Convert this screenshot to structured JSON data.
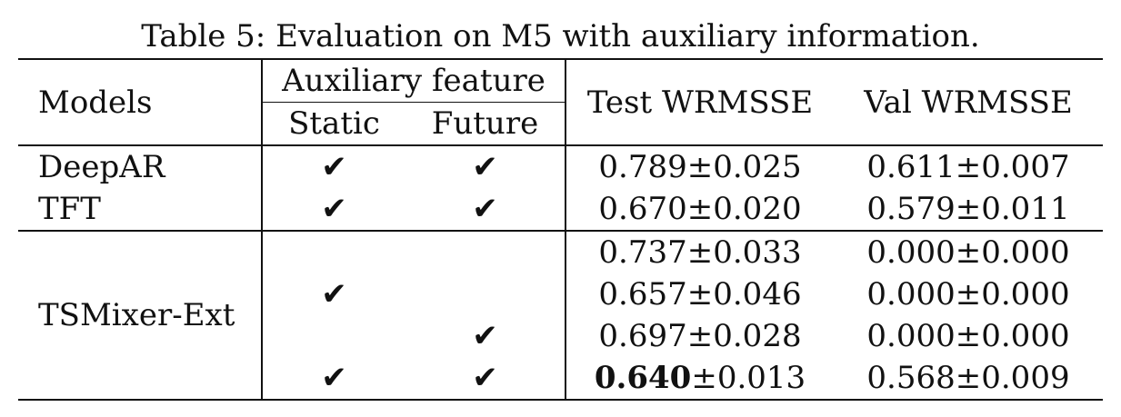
{
  "caption": "Table 5: Evaluation on M5 with auxiliary information.",
  "headers": {
    "models": "Models",
    "auxiliary_feature": "Auxiliary feature",
    "static": "Static",
    "future": "Future",
    "test": "Test WRMSSE",
    "val": "Val WRMSSE"
  },
  "check_glyph": "✔",
  "rows": [
    {
      "model": "DeepAR",
      "static": "✔",
      "future": "✔",
      "test_bold": "",
      "test_rest": "0.789±0.025",
      "val": "0.611±0.007"
    },
    {
      "model": "TFT",
      "static": "✔",
      "future": "✔",
      "test_bold": "",
      "test_rest": "0.670±0.020",
      "val": "0.579±0.011"
    },
    {
      "model": "",
      "static": "",
      "future": "",
      "test_bold": "",
      "test_rest": "0.737±0.033",
      "val": "0.000±0.000"
    },
    {
      "model": "",
      "static": "✔",
      "future": "",
      "test_bold": "",
      "test_rest": "0.657±0.046",
      "val": "0.000±0.000"
    },
    {
      "model": "",
      "static": "",
      "future": "✔",
      "test_bold": "",
      "test_rest": "0.697±0.028",
      "val": "0.000±0.000"
    },
    {
      "model": "",
      "static": "✔",
      "future": "✔",
      "test_bold": "0.640",
      "test_rest": "±0.013",
      "val": "0.568±0.009"
    }
  ],
  "tsmixer_group_label": "TSMixer-Ext"
}
